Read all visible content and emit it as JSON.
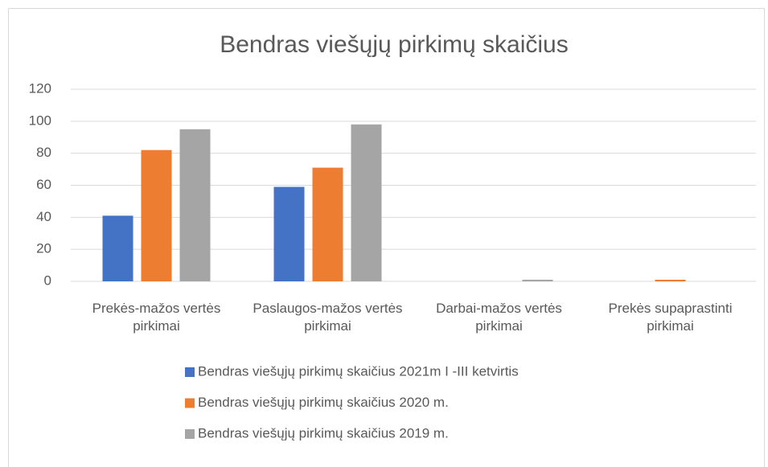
{
  "chart_data": {
    "type": "bar",
    "title": "Bendras viešųjų pirkimų skaičius",
    "categories": [
      "Prekės-mažos vertės pirkimai",
      "Paslaugos-mažos vertės pirkimai",
      "Darbai-mažos vertės pirkimai",
      "Prekės supaprastinti pirkimai"
    ],
    "series": [
      {
        "name": "Bendras viešųjų pirkimų skaičius 2021m I -III ketvirtis",
        "color": "#4472c4",
        "values": [
          41,
          59,
          0,
          0
        ]
      },
      {
        "name": "Bendras viešųjų pirkimų skaičius 2020 m.",
        "color": "#ed7d31",
        "values": [
          82,
          71,
          0,
          1
        ]
      },
      {
        "name": "Bendras viešųjų pirkimų skaičius 2019 m.",
        "color": "#a5a5a5",
        "values": [
          95,
          98,
          1,
          0
        ]
      }
    ],
    "ylim": [
      0,
      120
    ],
    "yticks": [
      0,
      20,
      40,
      60,
      80,
      100,
      120
    ],
    "grid": true,
    "legend": "bottom"
  }
}
